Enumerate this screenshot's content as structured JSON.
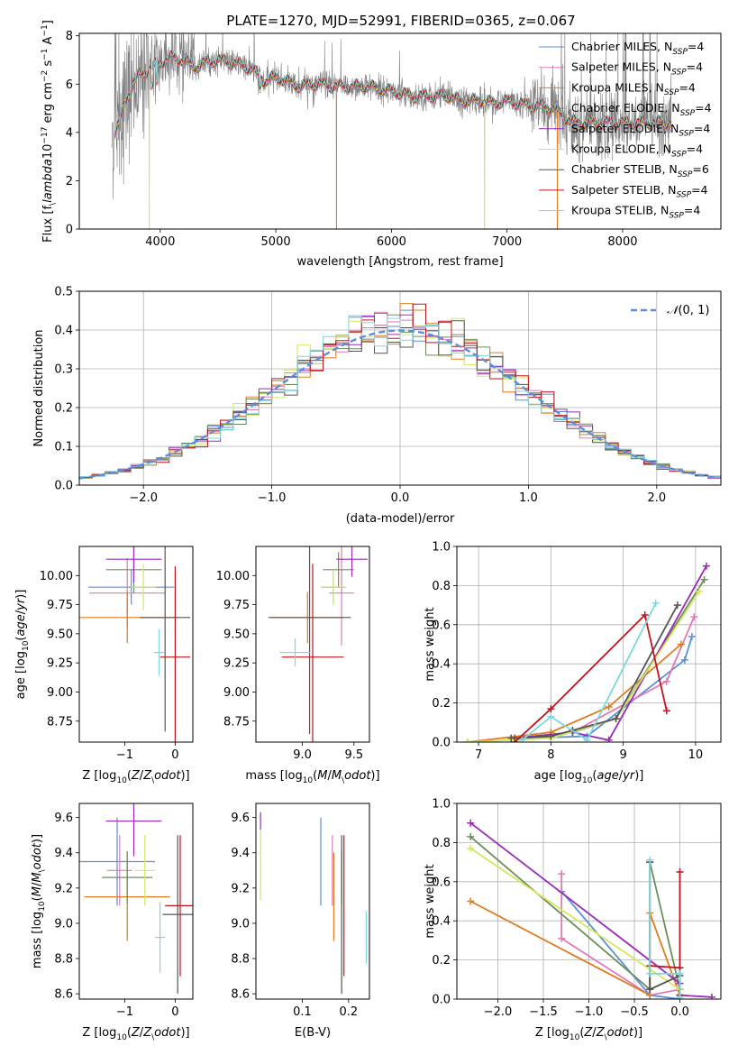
{
  "title": "PLATE=1270, MJD=52991, FIBERID=0365, z=0.067",
  "legend_entries": [
    {
      "label": "Chabrier MILES, N$_{SSP}$=4",
      "color": "#5b8fd9"
    },
    {
      "label": "Salpeter MILES, N$_{SSP}$=4",
      "color": "#e07ab6"
    },
    {
      "label": "Kroupa MILES, N$_{SSP}$=4",
      "color": "#e07b1f"
    },
    {
      "label": "Chabrier ELODIE, N$_{SSP}$=4",
      "color": "#6a8f5c"
    },
    {
      "label": "Salpeter ELODIE, N$_{SSP}$=4",
      "color": "#9a2bb8"
    },
    {
      "label": "Kroupa ELODIE, N$_{SSP}$=4",
      "color": "#d3e85b"
    },
    {
      "label": "Chabrier STELIB, N$_{SSP}$=6",
      "color": "#555555"
    },
    {
      "label": "Salpeter STELIB, N$_{SSP}$=4",
      "color": "#c0141c"
    },
    {
      "label": "Kroupa STELIB, N$_{SSP}$=4",
      "color": "#7ed6de"
    }
  ],
  "colors": {
    "data": "#808080",
    "gaussian": "#5b8fd9"
  },
  "chart_data": [
    {
      "id": "spectrum",
      "type": "line",
      "xlabel": "wavelength [Angstrom, rest frame]",
      "ylabel": "Flux [f$_\\lambda$10$^{-17}$ erg cm$^{-2}$ s$^{-1}$ A$^{-1}$]",
      "xlim": [
        3300,
        8850
      ],
      "ylim": [
        0,
        8.1
      ],
      "xticks": [
        4000,
        5000,
        6000,
        7000,
        8000
      ],
      "yticks": [
        0,
        2,
        4,
        6,
        8
      ],
      "legend_position": "upper right",
      "continuum": {
        "x": [
          3590,
          3650,
          3700,
          3800,
          3900,
          4000,
          4100,
          4200,
          4300,
          4400,
          4500,
          4600,
          4700,
          4800,
          4860,
          4900,
          5000,
          5100,
          5200,
          5300,
          5400,
          5500,
          5600,
          5700,
          5800,
          5900,
          6000,
          6100,
          6200,
          6300,
          6400,
          6500,
          6600,
          6700,
          6800,
          6900,
          7000,
          7100,
          7200,
          7300,
          7400,
          7500,
          7600
        ],
        "y": [
          3.9,
          4.4,
          5.3,
          6.3,
          6.6,
          6.9,
          7.1,
          7.0,
          6.7,
          6.9,
          7.0,
          6.9,
          6.8,
          6.6,
          6.3,
          6.1,
          6.3,
          6.1,
          5.9,
          6.0,
          6.0,
          5.9,
          5.9,
          5.9,
          5.9,
          5.8,
          5.7,
          5.6,
          5.5,
          5.5,
          5.5,
          5.5,
          5.3,
          5.3,
          5.3,
          5.2,
          5.3,
          5.2,
          5.1,
          5.1,
          5.0,
          4.6,
          4.4
        ]
      },
      "data_spikes_to_zero": [
        3905,
        5525,
        6805,
        7435
      ],
      "model_spikes_to_zero": [
        3905,
        5525,
        6805,
        7435
      ],
      "data_x_range": [
        3580,
        8420
      ]
    },
    {
      "id": "residuals",
      "type": "histogram",
      "xlabel": "(data-model)/error",
      "ylabel": "Normed distribution",
      "xlim": [
        -2.5,
        2.5
      ],
      "ylim": [
        0,
        0.5
      ],
      "xticks": [
        -2,
        -1,
        0,
        1,
        2
      ],
      "yticks": [
        0.0,
        0.1,
        0.2,
        0.3,
        0.4,
        0.5
      ],
      "grid": true,
      "bin_width": 0.1,
      "series_note": "one step histogram per model, same colors as legend",
      "gaussian": {
        "label": "$\\mathcal{N}(0,1)$",
        "mean": 0,
        "sigma": 1
      },
      "legend_position": "upper right"
    },
    {
      "id": "age-vs-Z",
      "type": "errorbar",
      "xlabel": "Z [log$_{10}$($Z/Z_\\odot$)]",
      "ylabel": "age  [log$_{10}$($age/yr$)]",
      "xlim": [
        -1.9,
        0.35
      ],
      "ylim": [
        8.57,
        10.25
      ],
      "xticks": [
        -1,
        0
      ],
      "yticks": [
        8.75,
        9.0,
        9.25,
        9.5,
        9.75,
        10.0
      ],
      "points": [
        {
          "c": 0,
          "x": -0.87,
          "xerr": 0.85,
          "y": 9.9,
          "yerr": 0.15
        },
        {
          "c": 1,
          "x": -0.95,
          "xerr": 0.75,
          "y": 9.85,
          "yerr": 0.3
        },
        {
          "c": 2,
          "x": -0.95,
          "xerr": 1.0,
          "y": 9.64,
          "yerr": 0.22
        },
        {
          "c": 3,
          "x": -0.82,
          "xerr": 0.55,
          "y": 10.05,
          "yerr": 0.2
        },
        {
          "c": 4,
          "x": -0.82,
          "xerr": 0.55,
          "y": 10.14,
          "yerr": 0.2
        },
        {
          "c": 5,
          "x": -0.63,
          "xerr": 0.25,
          "y": 9.9,
          "yerr": 0.2
        },
        {
          "c": 6,
          "x": -0.2,
          "xerr": 0.5,
          "y": 9.64,
          "yerr": 0.98
        },
        {
          "c": 7,
          "x": 0.0,
          "xerr": 0.3,
          "y": 9.3,
          "yerr": 0.78
        },
        {
          "c": 8,
          "x": -0.32,
          "xerr": 0.1,
          "y": 9.34,
          "yerr": 0.2
        }
      ]
    },
    {
      "id": "age-vs-mass",
      "type": "errorbar",
      "xlabel": "mass [log$_{10}$($M/M_\\odot$)]",
      "ylabel": "",
      "xlim": [
        8.55,
        9.65
      ],
      "ylim": [
        8.57,
        10.25
      ],
      "xticks": [
        9.0,
        9.5
      ],
      "yticks": [
        8.75,
        9.0,
        9.25,
        9.5,
        9.75,
        10.0
      ],
      "points": [
        {
          "c": 0,
          "x": 9.3,
          "xerr": 0.12,
          "y": 9.9,
          "yerr": 0.15
        },
        {
          "c": 1,
          "x": 9.38,
          "xerr": 0.12,
          "y": 9.85,
          "yerr": 0.45
        },
        {
          "c": 2,
          "x": 9.05,
          "xerr": 0.35,
          "y": 9.64,
          "yerr": 0.22
        },
        {
          "c": 3,
          "x": 9.35,
          "xerr": 0.15,
          "y": 10.05,
          "yerr": 0.15
        },
        {
          "c": 4,
          "x": 9.48,
          "xerr": 0.15,
          "y": 10.14,
          "yerr": 0.15
        },
        {
          "c": 5,
          "x": 9.3,
          "xerr": 0.12,
          "y": 9.9,
          "yerr": 0.15
        },
        {
          "c": 6,
          "x": 9.07,
          "xerr": 0.4,
          "y": 9.64,
          "yerr": 1.0
        },
        {
          "c": 7,
          "x": 9.1,
          "xerr": 0.3,
          "y": 9.3,
          "yerr": 0.8
        },
        {
          "c": 8,
          "x": 8.93,
          "xerr": 0.15,
          "y": 9.34,
          "yerr": 0.12
        }
      ]
    },
    {
      "id": "weight-vs-age",
      "type": "line",
      "xlabel": "age  [log$_{10}$($age/yr$)]",
      "ylabel": "mass weight",
      "xlim": [
        6.7,
        10.35
      ],
      "ylim": [
        0,
        1.0
      ],
      "xticks": [
        7,
        8,
        9,
        10
      ],
      "yticks": [
        0.0,
        0.2,
        0.4,
        0.6,
        0.8,
        1.0
      ],
      "grid": true,
      "series": [
        {
          "c": 0,
          "x": [
            7.6,
            8.5,
            9.85,
            9.95
          ],
          "y": [
            0.02,
            0.03,
            0.42,
            0.54
          ]
        },
        {
          "c": 1,
          "x": [
            7.5,
            8.3,
            9.6,
            9.98
          ],
          "y": [
            0.02,
            0.05,
            0.31,
            0.64
          ]
        },
        {
          "c": 2,
          "x": [
            6.85,
            8.0,
            8.8,
            9.8
          ],
          "y": [
            0.0,
            0.05,
            0.18,
            0.5
          ]
        },
        {
          "c": 3,
          "x": [
            7.5,
            8.3,
            8.9,
            10.12
          ],
          "y": [
            0.02,
            0.05,
            0.12,
            0.83
          ]
        },
        {
          "c": 4,
          "x": [
            7.5,
            8.3,
            8.8,
            10.15
          ],
          "y": [
            0.02,
            0.05,
            0.01,
            0.9
          ]
        },
        {
          "c": 5,
          "x": [
            6.85,
            8.0,
            8.9,
            10.05
          ],
          "y": [
            0.0,
            0.02,
            0.12,
            0.77
          ]
        },
        {
          "c": 6,
          "x": [
            7.45,
            8.0,
            8.3,
            8.9,
            9.75
          ],
          "y": [
            0.02,
            0.03,
            0.06,
            0.12,
            0.7
          ]
        },
        {
          "c": 7,
          "x": [
            7.5,
            8.0,
            9.3,
            9.6
          ],
          "y": [
            0.0,
            0.17,
            0.65,
            0.16
          ]
        },
        {
          "c": 8,
          "x": [
            7.6,
            8.0,
            8.5,
            9.45
          ],
          "y": [
            0.01,
            0.13,
            0.01,
            0.71
          ]
        }
      ]
    },
    {
      "id": "mass-vs-Z",
      "type": "errorbar",
      "xlabel": "Z [log$_{10}$($Z/Z_\\odot$)]",
      "ylabel": "mass [log$_{10}$($M/M_\\odot$)]",
      "xlim": [
        -1.9,
        0.35
      ],
      "ylim": [
        8.57,
        9.68
      ],
      "xticks": [
        -1,
        0
      ],
      "yticks": [
        8.6,
        8.8,
        9.0,
        9.2,
        9.4,
        9.6
      ],
      "points": [
        {
          "c": 0,
          "x": -1.15,
          "xerr": 0.75,
          "y": 9.35,
          "yerr": 0.25
        },
        {
          "c": 1,
          "x": -1.1,
          "xerr": 0.25,
          "y": 9.3,
          "yerr": 0.2
        },
        {
          "c": 2,
          "x": -0.95,
          "xerr": 0.85,
          "y": 9.15,
          "yerr": 0.25
        },
        {
          "c": 3,
          "x": -0.95,
          "xerr": 0.5,
          "y": 9.26,
          "yerr": 0.15
        },
        {
          "c": 4,
          "x": -0.82,
          "xerr": 0.55,
          "y": 9.58,
          "yerr": 0.2
        },
        {
          "c": 5,
          "x": -0.6,
          "xerr": 0.2,
          "y": 9.3,
          "yerr": 0.2
        },
        {
          "c": 6,
          "x": 0.05,
          "xerr": 0.3,
          "y": 9.05,
          "yerr": 0.45
        },
        {
          "c": 7,
          "x": 0.1,
          "xerr": 0.3,
          "y": 9.1,
          "yerr": 0.4
        },
        {
          "c": 8,
          "x": -0.3,
          "xerr": 0.1,
          "y": 8.92,
          "yerr": 0.2
        }
      ]
    },
    {
      "id": "mass-vs-ebv",
      "type": "errorbar",
      "xlabel": "E(B-V)",
      "ylabel": "",
      "xlim": [
        0.0,
        0.245
      ],
      "ylim": [
        8.57,
        9.68
      ],
      "xticks": [
        0.1,
        0.2
      ],
      "yticks": [
        8.6,
        8.8,
        9.0,
        9.2,
        9.4,
        9.6
      ],
      "points": [
        {
          "c": 0,
          "x": 0.14,
          "xerr": 0,
          "y": 9.35,
          "yerr": 0.25
        },
        {
          "c": 1,
          "x": 0.165,
          "xerr": 0,
          "y": 9.3,
          "yerr": 0.2
        },
        {
          "c": 2,
          "x": 0.168,
          "xerr": 0,
          "y": 9.15,
          "yerr": 0.25
        },
        {
          "c": 3,
          "x": 0.185,
          "xerr": 0,
          "y": 9.26,
          "yerr": 0.15
        },
        {
          "c": 4,
          "x": 0.01,
          "xerr": 0,
          "y": 9.58,
          "yerr": 0.05
        },
        {
          "c": 5,
          "x": 0.01,
          "xerr": 0,
          "y": 9.33,
          "yerr": 0.2
        },
        {
          "c": 6,
          "x": 0.185,
          "xerr": 0,
          "y": 9.05,
          "yerr": 0.45
        },
        {
          "c": 7,
          "x": 0.19,
          "xerr": 0,
          "y": 9.1,
          "yerr": 0.4
        },
        {
          "c": 8,
          "x": 0.238,
          "xerr": 0,
          "y": 8.92,
          "yerr": 0.15
        }
      ]
    },
    {
      "id": "weight-vs-Z",
      "type": "line",
      "xlabel": "Z [log$_{10}$($Z/Z_\\odot$)]",
      "ylabel": "mass weight",
      "xlim": [
        -2.45,
        0.45
      ],
      "ylim": [
        0,
        1.0
      ],
      "xticks": [
        -2.0,
        -1.5,
        -1.0,
        -0.5,
        0.0
      ],
      "yticks": [
        0.0,
        0.2,
        0.4,
        0.6,
        0.8,
        1.0
      ],
      "grid": true,
      "series": [
        {
          "c": 0,
          "x": [
            -1.3,
            -0.33,
            0.0,
            0.0
          ],
          "y": [
            0.55,
            0.02,
            0.0,
            0.05
          ]
        },
        {
          "c": 1,
          "x": [
            -1.3,
            -1.3,
            -0.33,
            0.0
          ],
          "y": [
            0.64,
            0.31,
            0.02,
            0.05
          ]
        },
        {
          "c": 2,
          "x": [
            -2.3,
            -0.33,
            -0.33,
            0.0
          ],
          "y": [
            0.5,
            0.02,
            0.44,
            0.02
          ]
        },
        {
          "c": 3,
          "x": [
            -2.3,
            -0.33,
            -0.33,
            0.0
          ],
          "y": [
            0.83,
            0.05,
            0.7,
            0.05
          ]
        },
        {
          "c": 4,
          "x": [
            -2.3,
            0.0,
            0.0,
            0.35
          ],
          "y": [
            0.9,
            0.08,
            0.02,
            0.01
          ]
        },
        {
          "c": 5,
          "x": [
            -2.3,
            0.0,
            0.0
          ],
          "y": [
            0.77,
            0.05,
            0.02
          ]
        },
        {
          "c": 6,
          "x": [
            -0.33,
            -0.33,
            0.0,
            0.0
          ],
          "y": [
            0.7,
            0.05,
            0.12,
            0.02
          ]
        },
        {
          "c": 7,
          "x": [
            -0.33,
            0.0,
            0.0,
            0.0
          ],
          "y": [
            0.17,
            0.16,
            0.65,
            0.02
          ]
        },
        {
          "c": 8,
          "x": [
            -0.33,
            -0.33,
            0.0,
            0.0
          ],
          "y": [
            0.71,
            0.13,
            0.13,
            0.01
          ]
        }
      ]
    }
  ]
}
